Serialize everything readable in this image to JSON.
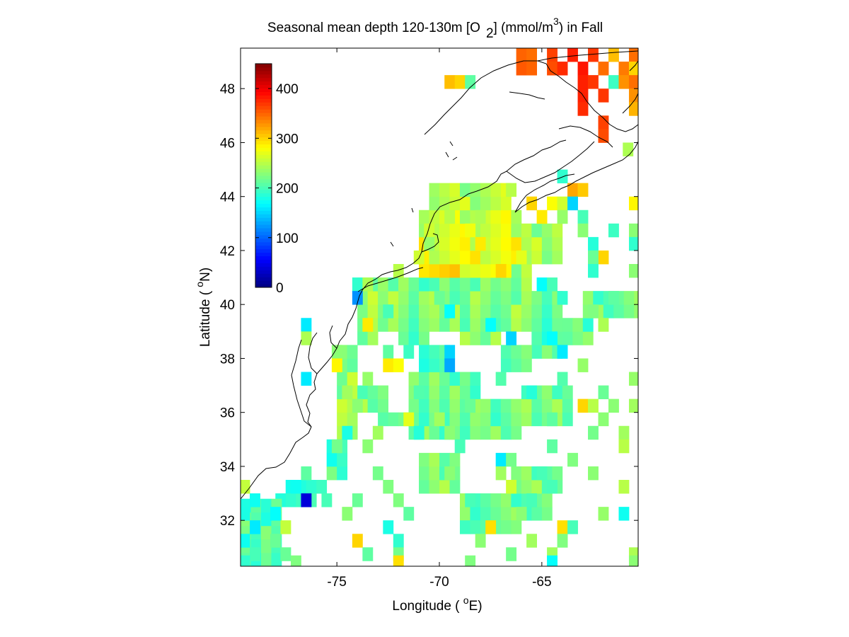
{
  "title": {
    "prefix": "Seasonal mean depth 120-130m [O",
    "sub": "2",
    "mid": "] (mmol/m",
    "sup": "3",
    "suffix": ") in  Fall"
  },
  "axes": {
    "xlabel_pre": "Longitude ( ",
    "xlabel_sup": "o",
    "xlabel_post": "E)",
    "ylabel_pre": "Latitude ( ",
    "ylabel_sup": "o",
    "ylabel_post": "N)",
    "xticks": [
      "-75",
      "-70",
      "-65"
    ],
    "yticks": [
      "48",
      "46",
      "44",
      "42",
      "40",
      "38",
      "36",
      "34",
      "32"
    ]
  },
  "colorbar": {
    "ticks": [
      "400",
      "300",
      "200",
      "100",
      "0"
    ],
    "colormap": "jet",
    "orientation": "vertical",
    "location": "upper-left inside map",
    "range": [
      0,
      450
    ]
  },
  "chart_data": {
    "type": "heatmap",
    "variable": "O2",
    "units": "mmol/m3",
    "season": "Fall",
    "depth": "120-130m",
    "xlim": [
      -79.7,
      -60.3
    ],
    "ylim": [
      30.3,
      49.5
    ],
    "cell_size_deg": [
      0.5,
      0.5
    ],
    "vmin": 0,
    "vmax": 450,
    "grid": false,
    "cells": [
      [
        -66.0,
        49.25,
        350
      ],
      [
        -65.5,
        49.25,
        345
      ],
      [
        -64.5,
        49.25,
        365
      ],
      [
        -63.5,
        49.25,
        380
      ],
      [
        -62.5,
        49.25,
        370
      ],
      [
        -61.5,
        49.25,
        310
      ],
      [
        -60.5,
        49.25,
        345
      ],
      [
        -66.0,
        48.75,
        355
      ],
      [
        -65.5,
        48.75,
        350
      ],
      [
        -64.5,
        48.75,
        360
      ],
      [
        -64.0,
        48.75,
        375
      ],
      [
        -63.0,
        48.75,
        385
      ],
      [
        -62.0,
        48.75,
        345
      ],
      [
        -61.0,
        48.75,
        340
      ],
      [
        -60.5,
        48.75,
        300
      ],
      [
        -69.5,
        48.25,
        310
      ],
      [
        -69.0,
        48.25,
        300
      ],
      [
        -68.5,
        48.25,
        210
      ],
      [
        -63.0,
        48.25,
        380
      ],
      [
        -62.5,
        48.25,
        370
      ],
      [
        -61.5,
        48.25,
        195
      ],
      [
        -61.0,
        48.25,
        330
      ],
      [
        -60.5,
        48.25,
        345
      ],
      [
        -63.0,
        47.75,
        380
      ],
      [
        -62.0,
        47.75,
        370
      ],
      [
        -60.5,
        47.75,
        330
      ],
      [
        -63.0,
        47.25,
        375
      ],
      [
        -60.5,
        47.25,
        315
      ],
      [
        -62.0,
        46.75,
        365
      ],
      [
        -62.0,
        46.25,
        360
      ],
      [
        -60.8,
        45.75,
        245
      ],
      [
        -64.0,
        44.75,
        190
      ],
      [
        -66.5,
        44.25,
        250
      ],
      [
        -63.5,
        44.25,
        320
      ],
      [
        -63.0,
        44.25,
        305
      ],
      [
        -65.5,
        43.75,
        300
      ],
      [
        -64.5,
        43.75,
        280
      ],
      [
        -64.0,
        43.75,
        260
      ],
      [
        -63.5,
        43.75,
        150
      ],
      [
        -60.5,
        43.75,
        285
      ],
      [
        -69.5,
        43.25,
        250
      ],
      [
        -68.0,
        43.25,
        245
      ],
      [
        -65.0,
        43.25,
        290
      ],
      [
        -64.0,
        43.25,
        235
      ],
      [
        -63.0,
        43.25,
        200
      ],
      [
        -70.5,
        42.75,
        260
      ],
      [
        -68.5,
        42.75,
        275
      ],
      [
        -63.0,
        42.75,
        230
      ],
      [
        -61.5,
        42.75,
        195
      ],
      [
        -60.5,
        42.75,
        230
      ],
      [
        -70.5,
        42.25,
        235
      ],
      [
        -68.0,
        42.25,
        290
      ],
      [
        -62.5,
        42.25,
        185
      ],
      [
        -60.5,
        42.25,
        190
      ],
      [
        -71.0,
        41.75,
        260
      ],
      [
        -66.0,
        41.75,
        270
      ],
      [
        -62.0,
        41.75,
        300
      ],
      [
        -62.5,
        41.75,
        215
      ],
      [
        -72.0,
        41.25,
        250
      ],
      [
        -67.0,
        41.25,
        300
      ],
      [
        -62.5,
        41.25,
        190
      ],
      [
        -60.5,
        41.25,
        230
      ],
      [
        -74.0,
        40.75,
        190
      ],
      [
        -73.5,
        40.75,
        245
      ],
      [
        -65.0,
        40.75,
        170
      ],
      [
        -64.5,
        40.75,
        200
      ],
      [
        -74.0,
        40.25,
        120
      ],
      [
        -70.0,
        40.25,
        215
      ],
      [
        -64.0,
        40.25,
        190
      ],
      [
        -61.5,
        40.25,
        210
      ],
      [
        -72.5,
        39.75,
        200
      ],
      [
        -69.5,
        39.75,
        170
      ],
      [
        -62.5,
        39.75,
        225
      ],
      [
        -76.5,
        39.25,
        160
      ],
      [
        -73.5,
        39.25,
        290
      ],
      [
        -67.5,
        39.25,
        170
      ],
      [
        -62.0,
        39.25,
        245
      ],
      [
        -76.5,
        38.75,
        245
      ],
      [
        -66.5,
        38.75,
        150
      ],
      [
        -64.5,
        38.75,
        170
      ],
      [
        -75.0,
        38.25,
        230
      ],
      [
        -72.5,
        38.25,
        210
      ],
      [
        -71.5,
        38.25,
        195
      ],
      [
        -69.5,
        38.25,
        150
      ],
      [
        -64.0,
        38.25,
        160
      ],
      [
        -75.0,
        37.75,
        285
      ],
      [
        -72.5,
        37.75,
        290
      ],
      [
        -72.0,
        37.75,
        280
      ],
      [
        -69.5,
        37.75,
        130
      ],
      [
        -63.0,
        37.75,
        235
      ],
      [
        -76.5,
        37.25,
        160
      ],
      [
        -73.5,
        37.25,
        235
      ],
      [
        -67.0,
        37.25,
        205
      ],
      [
        -64.0,
        37.25,
        205
      ],
      [
        -60.5,
        37.25,
        235
      ],
      [
        -74.5,
        36.75,
        240
      ],
      [
        -71.0,
        36.75,
        205
      ],
      [
        -65.5,
        36.75,
        185
      ],
      [
        -62.0,
        36.75,
        215
      ],
      [
        -74.0,
        36.25,
        230
      ],
      [
        -68.5,
        36.25,
        215
      ],
      [
        -63.0,
        36.25,
        300
      ],
      [
        -62.5,
        36.25,
        250
      ],
      [
        -61.5,
        36.25,
        230
      ],
      [
        -60.5,
        36.25,
        240
      ],
      [
        -71.5,
        35.75,
        270
      ],
      [
        -70.0,
        35.75,
        240
      ],
      [
        -64.5,
        35.75,
        210
      ],
      [
        -62.0,
        35.75,
        230
      ],
      [
        -74.5,
        35.25,
        180
      ],
      [
        -73.0,
        35.25,
        240
      ],
      [
        -71.0,
        35.25,
        185
      ],
      [
        -69.5,
        35.25,
        230
      ],
      [
        -62.5,
        35.25,
        220
      ],
      [
        -61.0,
        35.25,
        240
      ],
      [
        -75.0,
        34.75,
        220
      ],
      [
        -73.5,
        34.75,
        230
      ],
      [
        -69.0,
        34.75,
        200
      ],
      [
        -64.5,
        34.75,
        210
      ],
      [
        -61.0,
        34.75,
        250
      ],
      [
        -67.0,
        34.25,
        160
      ],
      [
        -66.5,
        34.25,
        220
      ],
      [
        -63.5,
        34.25,
        225
      ],
      [
        -76.5,
        33.75,
        210
      ],
      [
        -73.0,
        33.75,
        220
      ],
      [
        -69.5,
        33.75,
        230
      ],
      [
        -67.0,
        33.75,
        240
      ],
      [
        -65.0,
        33.75,
        200
      ],
      [
        -62.5,
        33.75,
        230
      ],
      [
        -79.5,
        33.25,
        255
      ],
      [
        -77.0,
        33.25,
        175
      ],
      [
        -72.5,
        33.25,
        225
      ],
      [
        -66.5,
        33.25,
        260
      ],
      [
        -64.5,
        33.25,
        200
      ],
      [
        -61.0,
        33.25,
        250
      ],
      [
        -79.0,
        32.75,
        175
      ],
      [
        -76.5,
        32.75,
        40
      ],
      [
        -75.5,
        32.75,
        200
      ],
      [
        -74.0,
        32.75,
        215
      ],
      [
        -72.0,
        32.75,
        225
      ],
      [
        -68.5,
        32.75,
        200
      ],
      [
        -65.5,
        32.75,
        200
      ],
      [
        -79.5,
        32.25,
        180
      ],
      [
        -78.0,
        32.25,
        170
      ],
      [
        -74.5,
        32.25,
        230
      ],
      [
        -71.5,
        32.25,
        210
      ],
      [
        -66.0,
        32.25,
        230
      ],
      [
        -62.0,
        32.25,
        235
      ],
      [
        -61.0,
        32.25,
        175
      ],
      [
        -79.0,
        31.75,
        160
      ],
      [
        -77.5,
        31.75,
        255
      ],
      [
        -72.5,
        31.75,
        180
      ],
      [
        -67.5,
        31.75,
        295
      ],
      [
        -64.0,
        31.75,
        295
      ],
      [
        -63.5,
        31.75,
        200
      ],
      [
        -79.5,
        31.25,
        175
      ],
      [
        -78.0,
        31.25,
        215
      ],
      [
        -74.0,
        31.25,
        300
      ],
      [
        -72.0,
        31.25,
        190
      ],
      [
        -68.0,
        31.25,
        230
      ],
      [
        -65.5,
        31.25,
        240
      ],
      [
        -64.0,
        31.25,
        225
      ],
      [
        -79.0,
        30.75,
        200
      ],
      [
        -77.5,
        30.75,
        215
      ],
      [
        -73.5,
        30.75,
        210
      ],
      [
        -72.0,
        30.75,
        220
      ],
      [
        -66.5,
        30.75,
        220
      ],
      [
        -64.5,
        30.75,
        240
      ],
      [
        -60.5,
        30.75,
        245
      ],
      [
        -79.5,
        30.45,
        190
      ],
      [
        -77.0,
        30.45,
        225
      ],
      [
        -72.0,
        30.45,
        295
      ],
      [
        -68.5,
        30.45,
        225
      ],
      [
        -64.5,
        30.45,
        170
      ],
      [
        -60.5,
        30.45,
        230
      ]
    ],
    "fill_regions": [
      {
        "lon": [
          -74,
          -73
        ],
        "lat": [
          38.5,
          41
        ],
        "value": 235
      },
      {
        "lon": [
          -73,
          -72
        ],
        "lat": [
          39,
          41
        ],
        "value": 230
      },
      {
        "lon": [
          -72,
          -70.5
        ],
        "lat": [
          38.5,
          41
        ],
        "value": 215
      },
      {
        "lon": [
          -70.5,
          -69
        ],
        "lat": [
          39,
          41.5
        ],
        "value": 225
      },
      {
        "lon": [
          -69,
          -67
        ],
        "lat": [
          38.5,
          41.5
        ],
        "value": 225
      },
      {
        "lon": [
          -67,
          -65.5
        ],
        "lat": [
          39,
          42
        ],
        "value": 230
      },
      {
        "lon": [
          -65.5,
          -64
        ],
        "lat": [
          38,
          40.5
        ],
        "value": 205
      },
      {
        "lon": [
          -71,
          -66.5
        ],
        "lat": [
          41,
          41.5
        ],
        "value": 285
      },
      {
        "lon": [
          -71,
          -66
        ],
        "lat": [
          41.5,
          42.5
        ],
        "value": 270
      },
      {
        "lon": [
          -71,
          -66
        ],
        "lat": [
          42.5,
          43.5
        ],
        "value": 260
      },
      {
        "lon": [
          -70.5,
          -66.5
        ],
        "lat": [
          43.5,
          44.5
        ],
        "value": 245
      },
      {
        "lon": [
          -66,
          -64
        ],
        "lat": [
          41.5,
          43
        ],
        "value": 240
      },
      {
        "lon": [
          -75,
          -74
        ],
        "lat": [
          35,
          38.5
        ],
        "value": 235
      },
      {
        "lon": [
          -74,
          -72.5
        ],
        "lat": [
          36,
          37
        ],
        "value": 225
      },
      {
        "lon": [
          -73,
          -71.5
        ],
        "lat": [
          35.5,
          36
        ],
        "value": 225
      },
      {
        "lon": [
          -71.5,
          -68
        ],
        "lat": [
          35,
          37.5
        ],
        "value": 215
      },
      {
        "lon": [
          -68,
          -66
        ],
        "lat": [
          35,
          36.5
        ],
        "value": 215
      },
      {
        "lon": [
          -66,
          -63.5
        ],
        "lat": [
          35.5,
          37
        ],
        "value": 220
      },
      {
        "lon": [
          -71,
          -69.5
        ],
        "lat": [
          37.5,
          38.5
        ],
        "value": 205
      },
      {
        "lon": [
          -67,
          -65.5
        ],
        "lat": [
          37.5,
          38.5
        ],
        "value": 210
      },
      {
        "lon": [
          -64,
          -62.5
        ],
        "lat": [
          38.5,
          39.5
        ],
        "value": 210
      },
      {
        "lon": [
          -63,
          -60.3
        ],
        "lat": [
          39.5,
          40.5
        ],
        "value": 215
      },
      {
        "lon": [
          -75.5,
          -74.5
        ],
        "lat": [
          33.5,
          35
        ],
        "value": 200
      },
      {
        "lon": [
          -77.5,
          -75.5
        ],
        "lat": [
          33,
          33.5
        ],
        "value": 195
      },
      {
        "lon": [
          -78,
          -76
        ],
        "lat": [
          32.5,
          33
        ],
        "value": 190
      },
      {
        "lon": [
          -79.7,
          -78
        ],
        "lat": [
          30.3,
          32.5
        ],
        "value": 205
      },
      {
        "lon": [
          -69,
          -64.5
        ],
        "lat": [
          32,
          33
        ],
        "value": 215
      },
      {
        "lon": [
          -69,
          -66
        ],
        "lat": [
          31.5,
          32
        ],
        "value": 220
      },
      {
        "lon": [
          -71,
          -69
        ],
        "lat": [
          33,
          34.5
        ],
        "value": 225
      },
      {
        "lon": [
          -66.5,
          -64
        ],
        "lat": [
          33,
          34
        ],
        "value": 220
      }
    ]
  }
}
